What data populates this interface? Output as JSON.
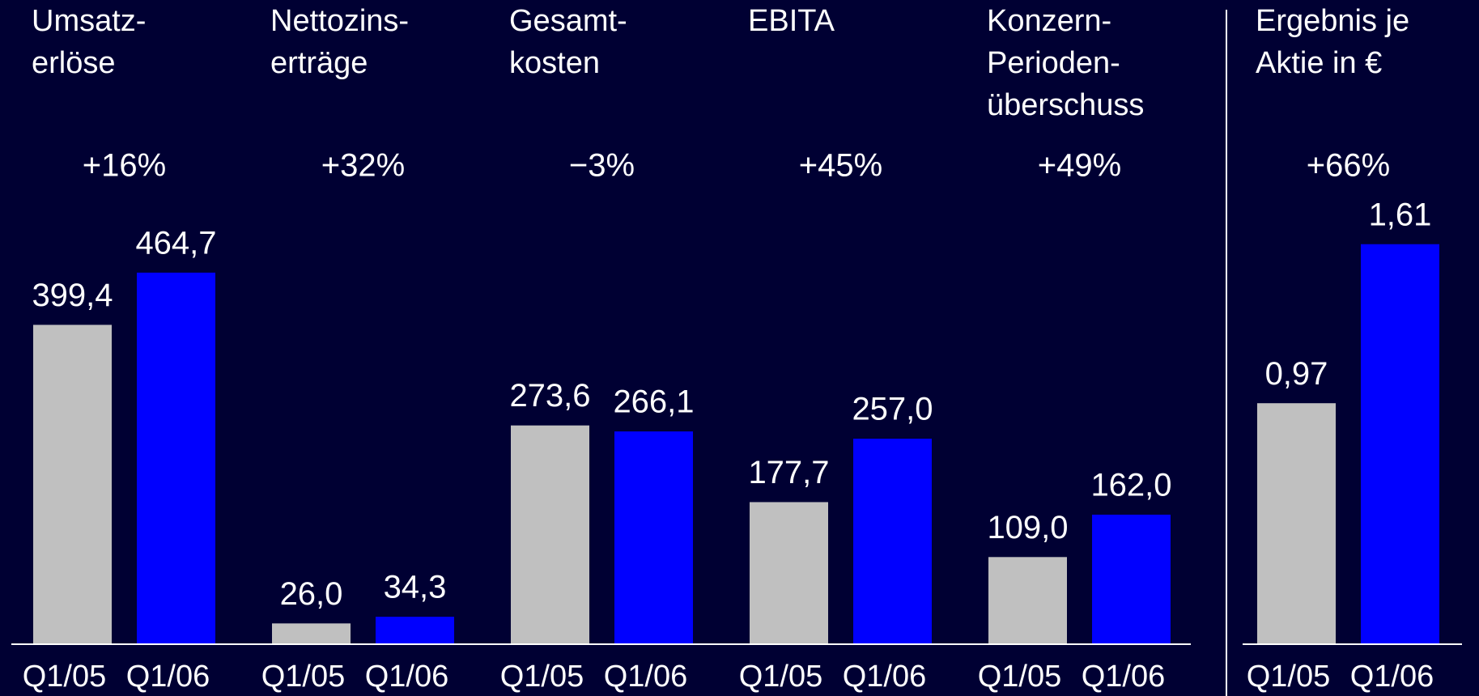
{
  "chart_data": [
    {
      "type": "bar",
      "categories": [
        [
          "Umsatz-",
          "erlöse"
        ],
        [
          "Nettozins-",
          "erträge"
        ],
        [
          "Gesamt-",
          "kosten"
        ],
        [
          "EBITA"
        ],
        [
          "Konzern-",
          "Perioden-",
          "überschuss"
        ]
      ],
      "changes": [
        "+16%",
        "+32%",
        "−3%",
        "+45%",
        "+49%"
      ],
      "series": [
        {
          "name": "Q1/05",
          "color": "#c0c0c0",
          "values": [
            399.4,
            26.0,
            273.6,
            177.7,
            109.0
          ],
          "value_labels": [
            "399,4",
            "26,0",
            "273,6",
            "177,7",
            "109,0"
          ]
        },
        {
          "name": "Q1/06",
          "color": "#0000ff",
          "values": [
            464.7,
            34.3,
            266.1,
            257.0,
            162.0
          ],
          "value_labels": [
            "464,7",
            "34,3",
            "266,1",
            "257,0",
            "162,0"
          ]
        }
      ],
      "ylim": [
        0,
        500
      ]
    },
    {
      "type": "bar",
      "categories": [
        [
          "Ergebnis je",
          "Aktie in €"
        ]
      ],
      "changes": [
        "+66%"
      ],
      "series": [
        {
          "name": "Q1/05",
          "color": "#c0c0c0",
          "values": [
            0.97
          ],
          "value_labels": [
            "0,97"
          ]
        },
        {
          "name": "Q1/06",
          "color": "#0000ff",
          "values": [
            1.61
          ],
          "value_labels": [
            "1,61"
          ]
        }
      ],
      "ylim": [
        0,
        2
      ]
    }
  ]
}
